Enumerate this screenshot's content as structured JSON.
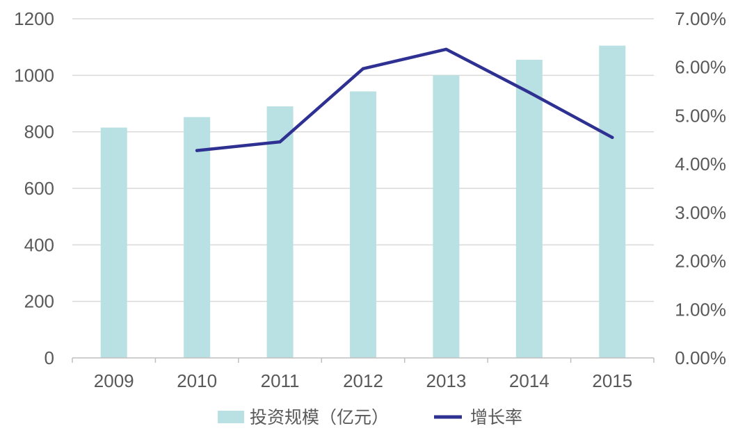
{
  "chart_data": {
    "type": "bar",
    "categories": [
      "2009",
      "2010",
      "2011",
      "2012",
      "2013",
      "2014",
      "2015"
    ],
    "series": [
      {
        "name": "投资规模（亿元）",
        "type": "bar",
        "axis": "left",
        "color": "#B9E0E2",
        "values": [
          815,
          852,
          890,
          943,
          1000,
          1055,
          1105
        ]
      },
      {
        "name": "增长率",
        "type": "line",
        "axis": "right",
        "color": "#2E3192",
        "values": [
          null,
          0.0428,
          0.0446,
          0.0597,
          0.0637,
          0.0548,
          0.0455
        ]
      }
    ],
    "ylim": [
      0,
      1200
    ],
    "yticks": [
      0,
      200,
      400,
      600,
      800,
      1000,
      1200
    ],
    "y2lim": [
      0,
      0.07
    ],
    "y2ticks": [
      "0.00%",
      "1.00%",
      "2.00%",
      "3.00%",
      "4.00%",
      "5.00%",
      "6.00%",
      "7.00%"
    ],
    "grid": true,
    "legend": "bottom",
    "title": "",
    "xlabel": "",
    "ylabel": ""
  }
}
